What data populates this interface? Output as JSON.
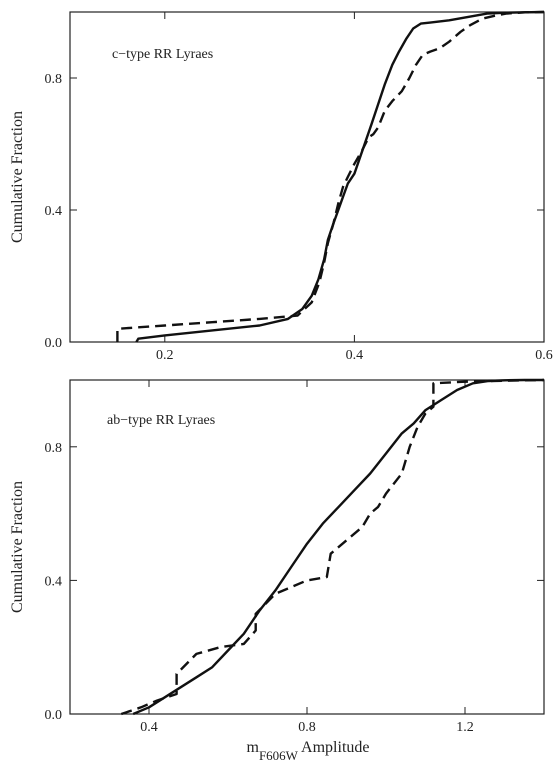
{
  "chart_data": [
    {
      "type": "line",
      "panel_label": "c−type RR Lyraes",
      "ylabel": "Cumulative Fraction",
      "xlabel": "",
      "xlim": [
        0.1,
        0.6
      ],
      "ylim": [
        0.0,
        1.0
      ],
      "xticks": [
        0.2,
        0.4,
        0.6
      ],
      "xtick_labels": [
        "0.2",
        "0.4",
        "0.6"
      ],
      "yticks": [
        0.0,
        0.4,
        0.8
      ],
      "ytick_labels": [
        "0.0",
        "0.4",
        "0.8"
      ],
      "series": [
        {
          "style": "solid",
          "x": [
            0.17,
            0.172,
            0.2,
            0.25,
            0.3,
            0.33,
            0.345,
            0.355,
            0.362,
            0.368,
            0.372,
            0.378,
            0.383,
            0.388,
            0.393,
            0.4,
            0.406,
            0.412,
            0.418,
            0.425,
            0.432,
            0.44,
            0.447,
            0.455,
            0.462,
            0.47,
            0.48,
            0.5,
            0.52,
            0.54,
            0.56,
            0.58,
            0.6
          ],
          "y": [
            0.0,
            0.01,
            0.02,
            0.035,
            0.05,
            0.07,
            0.1,
            0.14,
            0.19,
            0.25,
            0.31,
            0.36,
            0.4,
            0.44,
            0.48,
            0.51,
            0.56,
            0.61,
            0.66,
            0.72,
            0.78,
            0.84,
            0.88,
            0.92,
            0.95,
            0.965,
            0.968,
            0.975,
            0.985,
            0.995,
            0.998,
            0.999,
            1.0
          ]
        },
        {
          "style": "dashed",
          "x": [
            0.15,
            0.15,
            0.2,
            0.25,
            0.3,
            0.34,
            0.355,
            0.363,
            0.368,
            0.372,
            0.378,
            0.383,
            0.388,
            0.393,
            0.4,
            0.408,
            0.415,
            0.42,
            0.425,
            0.432,
            0.44,
            0.45,
            0.458,
            0.465,
            0.472,
            0.48,
            0.49,
            0.5,
            0.512,
            0.522,
            0.535,
            0.55,
            0.56,
            0.58,
            0.6
          ],
          "y": [
            0.0,
            0.04,
            0.05,
            0.06,
            0.07,
            0.08,
            0.12,
            0.18,
            0.24,
            0.3,
            0.36,
            0.42,
            0.47,
            0.5,
            0.54,
            0.58,
            0.62,
            0.63,
            0.65,
            0.7,
            0.73,
            0.76,
            0.8,
            0.84,
            0.87,
            0.88,
            0.89,
            0.91,
            0.94,
            0.96,
            0.98,
            0.99,
            0.995,
            0.999,
            1.0
          ]
        }
      ]
    },
    {
      "type": "line",
      "panel_label": "ab−type RR Lyraes",
      "ylabel": "Cumulative Fraction",
      "xlabel": "m",
      "xlabel_sub": "F606W",
      "xlabel_suffix": " Amplitude",
      "xlim": [
        0.2,
        1.4
      ],
      "ylim": [
        0.0,
        1.0
      ],
      "xticks": [
        0.4,
        0.8,
        1.2
      ],
      "xtick_labels": [
        "0.4",
        "0.8",
        "1.2"
      ],
      "yticks": [
        0.0,
        0.4,
        0.8
      ],
      "ytick_labels": [
        "0.0",
        "0.4",
        "0.8"
      ],
      "series": [
        {
          "style": "solid",
          "x": [
            0.36,
            0.4,
            0.44,
            0.48,
            0.52,
            0.56,
            0.6,
            0.64,
            0.68,
            0.72,
            0.76,
            0.8,
            0.84,
            0.88,
            0.92,
            0.96,
            1.0,
            1.04,
            1.07,
            1.1,
            1.14,
            1.18,
            1.22,
            1.26,
            1.3,
            1.35,
            1.4
          ],
          "y": [
            0.0,
            0.02,
            0.05,
            0.08,
            0.11,
            0.14,
            0.19,
            0.24,
            0.31,
            0.37,
            0.44,
            0.51,
            0.57,
            0.62,
            0.67,
            0.72,
            0.78,
            0.84,
            0.87,
            0.91,
            0.94,
            0.97,
            0.99,
            0.997,
            0.999,
            1.0,
            1.0
          ]
        },
        {
          "style": "dashed",
          "x": [
            0.33,
            0.38,
            0.42,
            0.47,
            0.47,
            0.52,
            0.58,
            0.64,
            0.67,
            0.67,
            0.72,
            0.8,
            0.85,
            0.86,
            0.9,
            0.94,
            0.96,
            0.98,
            1.0,
            1.04,
            1.06,
            1.08,
            1.1,
            1.12,
            1.12,
            1.2,
            1.3,
            1.4
          ],
          "y": [
            0.0,
            0.02,
            0.04,
            0.06,
            0.12,
            0.18,
            0.2,
            0.21,
            0.25,
            0.3,
            0.36,
            0.4,
            0.41,
            0.48,
            0.52,
            0.56,
            0.6,
            0.62,
            0.66,
            0.72,
            0.8,
            0.86,
            0.9,
            0.92,
            0.99,
            0.995,
            0.998,
            1.0
          ]
        }
      ]
    }
  ]
}
